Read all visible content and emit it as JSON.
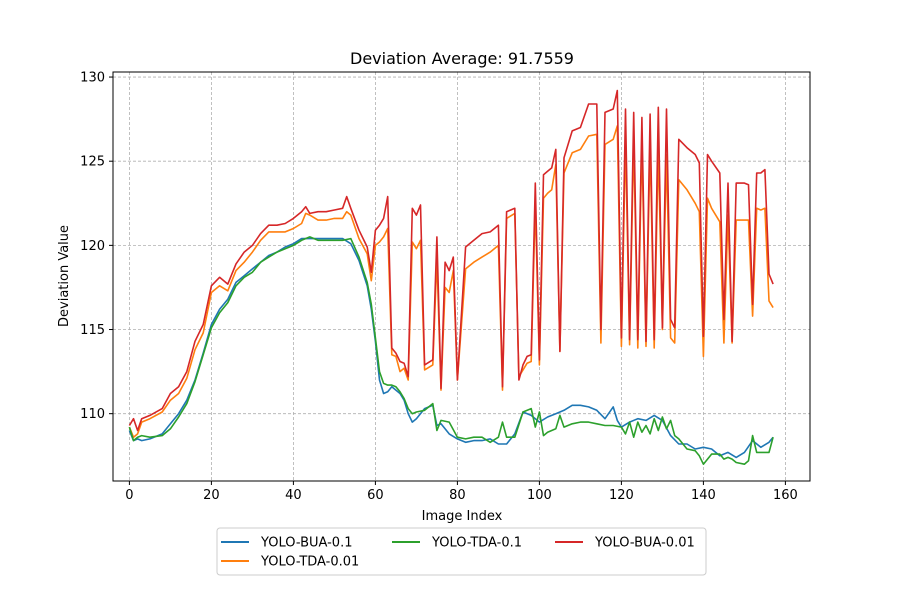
{
  "chart_data": {
    "type": "line",
    "title": "Deviation Average: 91.7559",
    "xlabel": "Image Index",
    "ylabel": "Deviation Value",
    "xlim": [
      -4,
      166
    ],
    "ylim": [
      106,
      130.3
    ],
    "xticks": [
      0,
      20,
      40,
      60,
      80,
      100,
      120,
      140,
      160
    ],
    "yticks": [
      110,
      115,
      120,
      125,
      130
    ],
    "grid": true,
    "legend_position": "bottom-center",
    "series": [
      {
        "name": "YOLO-BUA-0.1",
        "color": "#1f77b4",
        "x": [
          0,
          1,
          2,
          3,
          5,
          8,
          10,
          12,
          14,
          16,
          18,
          20,
          22,
          24,
          26,
          28,
          30,
          32,
          34,
          36,
          38,
          40,
          42,
          44,
          46,
          48,
          50,
          52,
          54,
          56,
          58,
          59,
          60,
          61,
          62,
          63,
          64,
          65,
          66,
          67,
          68,
          69,
          70,
          72,
          74,
          75,
          76,
          78,
          80,
          82,
          84,
          86,
          88,
          90,
          92,
          94,
          96,
          98,
          100,
          102,
          104,
          106,
          108,
          110,
          112,
          114,
          116,
          118,
          119,
          120,
          122,
          124,
          126,
          128,
          130,
          132,
          134,
          136,
          138,
          140,
          142,
          144,
          146,
          148,
          150,
          152,
          154,
          156,
          157
        ],
        "y": [
          109.0,
          108.4,
          108.5,
          108.4,
          108.5,
          108.8,
          109.4,
          110.0,
          110.8,
          112.0,
          113.6,
          115.3,
          116.2,
          116.8,
          117.8,
          118.2,
          118.6,
          119.0,
          119.4,
          119.6,
          119.9,
          120.1,
          120.4,
          120.4,
          120.4,
          120.4,
          120.4,
          120.4,
          120.1,
          119.1,
          117.6,
          116.2,
          114.3,
          112.0,
          111.2,
          111.3,
          111.6,
          111.4,
          111.2,
          110.8,
          110.0,
          109.5,
          109.7,
          110.3,
          110.5,
          109.3,
          109.4,
          108.8,
          108.5,
          108.3,
          108.4,
          108.4,
          108.5,
          108.2,
          108.2,
          108.8,
          110.1,
          109.9,
          109.5,
          109.8,
          110.0,
          110.2,
          110.5,
          110.5,
          110.4,
          110.2,
          109.7,
          110.4,
          109.6,
          109.2,
          109.5,
          109.7,
          109.6,
          109.9,
          109.6,
          108.7,
          108.2,
          108.2,
          107.9,
          108.0,
          107.9,
          107.5,
          107.7,
          107.4,
          107.7,
          108.4,
          108.0,
          108.3,
          108.6
        ]
      },
      {
        "name": "YOLO-TDA-0.01",
        "color": "#ff7f0e",
        "x": [
          0,
          1,
          2,
          3,
          5,
          8,
          10,
          12,
          14,
          16,
          18,
          20,
          22,
          24,
          26,
          28,
          30,
          32,
          34,
          36,
          38,
          40,
          42,
          43,
          44,
          46,
          48,
          50,
          52,
          53,
          54,
          56,
          58,
          59,
          60,
          61,
          62,
          63,
          64,
          65,
          66,
          67,
          68,
          69,
          70,
          71,
          72,
          74,
          75,
          76,
          77,
          78,
          79,
          80,
          82,
          84,
          86,
          88,
          90,
          91,
          92,
          94,
          95,
          96,
          97,
          98,
          99,
          100,
          101,
          102,
          103,
          104,
          105,
          106,
          108,
          110,
          112,
          114,
          115,
          116,
          118,
          119,
          120,
          121,
          122,
          123,
          124,
          125,
          126,
          127,
          128,
          129,
          130,
          131,
          132,
          133,
          134,
          136,
          138,
          139,
          140,
          141,
          142,
          144,
          145,
          146,
          147,
          148,
          150,
          151,
          152,
          153,
          154,
          155,
          156,
          157
        ],
        "y": [
          109.2,
          108.6,
          108.8,
          109.5,
          109.7,
          110.1,
          110.8,
          111.2,
          112.1,
          113.8,
          114.8,
          117.2,
          117.6,
          117.3,
          118.5,
          119.0,
          119.6,
          120.3,
          120.8,
          120.8,
          120.8,
          121.0,
          121.3,
          121.9,
          121.8,
          121.5,
          121.5,
          121.6,
          121.6,
          122.0,
          121.8,
          120.4,
          119.5,
          117.9,
          120.0,
          120.2,
          120.5,
          121.0,
          113.5,
          113.4,
          112.5,
          112.7,
          112.0,
          120.2,
          119.8,
          120.3,
          112.6,
          112.9,
          119.2,
          111.4,
          117.5,
          117.2,
          118.5,
          112.0,
          118.6,
          119.0,
          119.3,
          119.6,
          120.0,
          111.4,
          121.6,
          121.9,
          112.2,
          112.6,
          113.0,
          113.1,
          122.5,
          112.9,
          122.8,
          123.1,
          123.3,
          124.8,
          113.7,
          124.3,
          125.5,
          125.7,
          126.5,
          126.6,
          114.2,
          126.0,
          126.3,
          127.1,
          114.0,
          126.2,
          114.1,
          126.3,
          113.9,
          126.1,
          114.0,
          126.0,
          113.9,
          125.7,
          115.0,
          125.4,
          114.5,
          114.2,
          123.9,
          123.3,
          122.5,
          122.0,
          113.4,
          122.8,
          122.2,
          121.4,
          114.2,
          121.8,
          114.2,
          121.5,
          121.5,
          121.5,
          115.8,
          122.2,
          122.1,
          122.2,
          116.7,
          116.3
        ]
      },
      {
        "name": "YOLO-TDA-0.1",
        "color": "#2ca02c",
        "x": [
          0,
          1,
          2,
          3,
          5,
          8,
          10,
          12,
          14,
          16,
          18,
          20,
          22,
          24,
          26,
          28,
          30,
          32,
          34,
          36,
          38,
          40,
          42,
          44,
          46,
          48,
          50,
          52,
          54,
          56,
          58,
          59,
          60,
          61,
          62,
          63,
          64,
          65,
          66,
          67,
          68,
          69,
          70,
          72,
          74,
          75,
          76,
          78,
          80,
          82,
          84,
          86,
          88,
          90,
          91,
          92,
          94,
          96,
          98,
          99,
          100,
          101,
          102,
          104,
          105,
          106,
          108,
          110,
          112,
          114,
          116,
          118,
          120,
          121,
          122,
          123,
          124,
          125,
          126,
          127,
          128,
          129,
          130,
          131,
          132,
          133,
          134,
          136,
          138,
          139,
          140,
          142,
          144,
          145,
          146,
          147,
          148,
          150,
          151,
          152,
          153,
          154,
          156,
          157
        ],
        "y": [
          109.2,
          108.4,
          108.6,
          108.7,
          108.6,
          108.7,
          109.1,
          109.8,
          110.6,
          111.9,
          113.5,
          115.1,
          116.0,
          116.6,
          117.6,
          118.1,
          118.4,
          119.0,
          119.3,
          119.6,
          119.8,
          120.0,
          120.3,
          120.5,
          120.3,
          120.3,
          120.3,
          120.3,
          120.4,
          119.3,
          117.8,
          116.5,
          114.5,
          112.5,
          111.8,
          111.7,
          111.7,
          111.6,
          111.3,
          110.9,
          110.3,
          110.0,
          110.1,
          110.2,
          110.6,
          109.0,
          109.6,
          109.5,
          108.6,
          108.5,
          108.6,
          108.6,
          108.3,
          108.6,
          109.5,
          108.6,
          108.6,
          110.1,
          110.3,
          109.2,
          110.1,
          108.7,
          108.9,
          109.1,
          109.9,
          109.2,
          109.4,
          109.5,
          109.5,
          109.4,
          109.3,
          109.3,
          109.2,
          108.8,
          109.5,
          108.6,
          109.5,
          108.9,
          109.3,
          108.8,
          109.7,
          109.0,
          109.8,
          109.1,
          109.6,
          108.7,
          108.5,
          107.9,
          107.8,
          107.5,
          107.0,
          107.6,
          107.6,
          107.3,
          107.4,
          107.3,
          107.1,
          107.0,
          107.2,
          108.7,
          107.7,
          107.7,
          107.7,
          108.6
        ]
      },
      {
        "name": "YOLO-BUA-0.01",
        "color": "#d62728",
        "x": [
          0,
          1,
          2,
          3,
          5,
          8,
          10,
          12,
          14,
          16,
          18,
          20,
          22,
          24,
          26,
          28,
          30,
          32,
          34,
          36,
          38,
          40,
          42,
          43,
          44,
          46,
          48,
          50,
          52,
          53,
          54,
          56,
          58,
          59,
          60,
          61,
          62,
          63,
          64,
          65,
          66,
          67,
          68,
          69,
          70,
          71,
          72,
          74,
          75,
          76,
          77,
          78,
          79,
          80,
          82,
          84,
          86,
          88,
          90,
          91,
          92,
          94,
          95,
          96,
          97,
          98,
          99,
          100,
          101,
          102,
          103,
          104,
          105,
          106,
          108,
          110,
          112,
          114,
          115,
          116,
          118,
          119,
          120,
          121,
          122,
          123,
          124,
          125,
          126,
          127,
          128,
          129,
          130,
          131,
          132,
          133,
          134,
          136,
          138,
          139,
          140,
          141,
          142,
          144,
          145,
          146,
          147,
          148,
          150,
          151,
          152,
          153,
          154,
          155,
          156,
          157
        ],
        "y": [
          109.3,
          109.7,
          109.0,
          109.7,
          109.9,
          110.3,
          111.2,
          111.6,
          112.5,
          114.3,
          115.3,
          117.6,
          118.1,
          117.7,
          118.9,
          119.6,
          120.0,
          120.7,
          121.2,
          121.2,
          121.3,
          121.6,
          122.0,
          122.3,
          121.9,
          122.0,
          122.0,
          122.1,
          122.2,
          122.9,
          122.2,
          120.9,
          119.9,
          118.4,
          120.9,
          121.2,
          121.6,
          122.9,
          113.9,
          113.6,
          113.1,
          113.0,
          112.2,
          122.2,
          121.8,
          122.4,
          112.9,
          113.2,
          120.5,
          111.5,
          119.0,
          118.5,
          119.3,
          112.0,
          119.9,
          120.3,
          120.7,
          120.8,
          121.2,
          111.6,
          122.0,
          122.2,
          112.0,
          112.9,
          113.4,
          113.5,
          123.7,
          113.2,
          124.2,
          124.4,
          124.6,
          125.7,
          113.7,
          125.2,
          126.8,
          127.0,
          128.4,
          128.4,
          115.0,
          127.9,
          128.1,
          129.2,
          114.5,
          128.1,
          114.4,
          127.9,
          114.4,
          127.6,
          114.3,
          127.8,
          114.4,
          128.2,
          115.1,
          128.1,
          115.6,
          115.1,
          126.3,
          125.8,
          125.4,
          124.9,
          114.6,
          125.4,
          125.0,
          124.3,
          115.6,
          123.7,
          114.3,
          123.7,
          123.7,
          123.6,
          116.5,
          124.3,
          124.3,
          124.5,
          118.3,
          117.7
        ]
      }
    ],
    "legend_entries": [
      "YOLO-BUA-0.1",
      "YOLO-TDA-0.1",
      "YOLO-BUA-0.01",
      "YOLO-TDA-0.01"
    ]
  }
}
